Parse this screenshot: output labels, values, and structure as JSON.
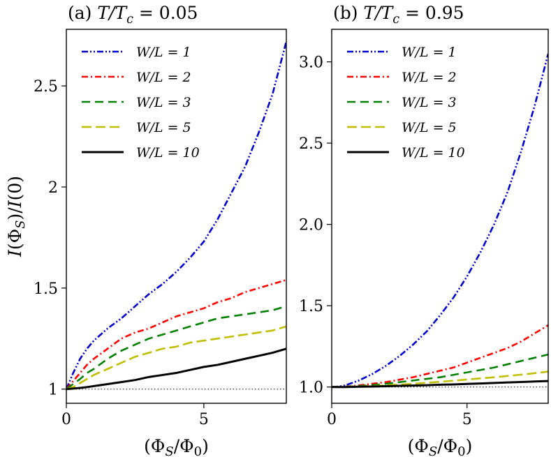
{
  "chart_data": [
    {
      "type": "line",
      "title": "(a) T/Tc = 0.05",
      "title_prefix": "(a) ",
      "title_math": "T/T",
      "title_sub": "c",
      "title_suffix": " = 0.05",
      "xlabel": "(Φ_S/Φ_0)",
      "ylabel": "I(Φ_S)/I(0)",
      "xlim": [
        0,
        8
      ],
      "ylim": [
        0.93,
        2.78
      ],
      "xticks": [
        0,
        5
      ],
      "xtick_labels": [
        "0",
        "5"
      ],
      "yticks": [
        1,
        1.5,
        2,
        2.5
      ],
      "ytick_labels": [
        "1",
        "1.5",
        "2",
        "2.5"
      ],
      "reference_line": 1.0,
      "legend_position": "top-left",
      "x": [
        0,
        0.25,
        0.5,
        0.75,
        1,
        1.5,
        2,
        2.5,
        3,
        3.5,
        4,
        4.5,
        5,
        5.5,
        6,
        6.5,
        7,
        7.5,
        8
      ],
      "series": [
        {
          "name": "W/L = 1",
          "color": "#0000d0",
          "style": "dashdotdot",
          "values": [
            1.0,
            1.08,
            1.15,
            1.2,
            1.24,
            1.3,
            1.35,
            1.41,
            1.47,
            1.52,
            1.58,
            1.65,
            1.73,
            1.84,
            1.97,
            2.1,
            2.27,
            2.46,
            2.72
          ]
        },
        {
          "name": "W/L = 2",
          "color": "#ff0000",
          "style": "dashdot",
          "values": [
            1.0,
            1.04,
            1.08,
            1.12,
            1.15,
            1.2,
            1.25,
            1.28,
            1.3,
            1.33,
            1.36,
            1.38,
            1.4,
            1.43,
            1.45,
            1.48,
            1.5,
            1.52,
            1.54
          ]
        },
        {
          "name": "W/L = 3",
          "color": "#008000",
          "style": "dashed",
          "values": [
            1.0,
            1.025,
            1.05,
            1.08,
            1.1,
            1.15,
            1.19,
            1.22,
            1.25,
            1.27,
            1.29,
            1.31,
            1.33,
            1.35,
            1.36,
            1.37,
            1.38,
            1.39,
            1.41
          ]
        },
        {
          "name": "W/L = 5",
          "color": "#bfbf00",
          "style": "longdash",
          "values": [
            1.0,
            1.01,
            1.03,
            1.05,
            1.07,
            1.1,
            1.13,
            1.16,
            1.18,
            1.2,
            1.21,
            1.23,
            1.24,
            1.25,
            1.26,
            1.27,
            1.28,
            1.29,
            1.31
          ]
        },
        {
          "name": "W/L = 10",
          "color": "#000000",
          "style": "solid",
          "values": [
            1.0,
            1.003,
            1.006,
            1.01,
            1.015,
            1.025,
            1.035,
            1.045,
            1.06,
            1.07,
            1.08,
            1.095,
            1.11,
            1.12,
            1.135,
            1.15,
            1.165,
            1.18,
            1.2
          ]
        }
      ]
    },
    {
      "type": "line",
      "title": "(b) T/Tc = 0.95",
      "title_prefix": "(b) ",
      "title_math": "T/T",
      "title_sub": "c",
      "title_suffix": " = 0.95",
      "xlabel": "(Φ_S/Φ_0)",
      "ylabel": "",
      "xlim": [
        0,
        8
      ],
      "ylim": [
        0.9,
        3.2
      ],
      "xticks": [
        0,
        5
      ],
      "xtick_labels": [
        "0",
        "5"
      ],
      "yticks": [
        1.0,
        1.5,
        2.0,
        2.5,
        3.0
      ],
      "ytick_labels": [
        "1.0",
        "1.5",
        "2.0",
        "2.5",
        "3.0"
      ],
      "reference_line": 1.0,
      "legend_position": "top-left",
      "x": [
        0,
        0.25,
        0.5,
        0.75,
        1,
        1.5,
        2,
        2.5,
        3,
        3.5,
        4,
        4.5,
        5,
        5.5,
        6,
        6.5,
        7,
        7.5,
        8
      ],
      "series": [
        {
          "name": "W/L = 1",
          "color": "#0000d0",
          "style": "dashdotdot",
          "values": [
            1.0,
            1.003,
            1.01,
            1.025,
            1.04,
            1.08,
            1.13,
            1.19,
            1.26,
            1.34,
            1.44,
            1.55,
            1.68,
            1.83,
            2.0,
            2.2,
            2.45,
            2.73,
            3.05
          ]
        },
        {
          "name": "W/L = 2",
          "color": "#ff0000",
          "style": "dashdot",
          "values": [
            1.0,
            1.001,
            1.003,
            1.006,
            1.01,
            1.02,
            1.03,
            1.045,
            1.06,
            1.08,
            1.1,
            1.12,
            1.15,
            1.18,
            1.21,
            1.24,
            1.28,
            1.33,
            1.38
          ]
        },
        {
          "name": "W/L = 3",
          "color": "#008000",
          "style": "dashed",
          "values": [
            1.0,
            1.0,
            1.002,
            1.004,
            1.006,
            1.012,
            1.02,
            1.03,
            1.04,
            1.05,
            1.06,
            1.075,
            1.09,
            1.105,
            1.12,
            1.14,
            1.16,
            1.18,
            1.2
          ]
        },
        {
          "name": "W/L = 5",
          "color": "#bfbf00",
          "style": "longdash",
          "values": [
            1.0,
            1.0,
            1.001,
            1.002,
            1.003,
            1.006,
            1.01,
            1.015,
            1.02,
            1.026,
            1.032,
            1.039,
            1.046,
            1.053,
            1.06,
            1.068,
            1.076,
            1.085,
            1.095
          ]
        },
        {
          "name": "W/L = 10",
          "color": "#000000",
          "style": "solid",
          "values": [
            1.0,
            1.0,
            1.0,
            1.001,
            1.002,
            1.003,
            1.005,
            1.007,
            1.009,
            1.011,
            1.014,
            1.016,
            1.019,
            1.022,
            1.025,
            1.028,
            1.031,
            1.034,
            1.037
          ]
        }
      ]
    }
  ]
}
